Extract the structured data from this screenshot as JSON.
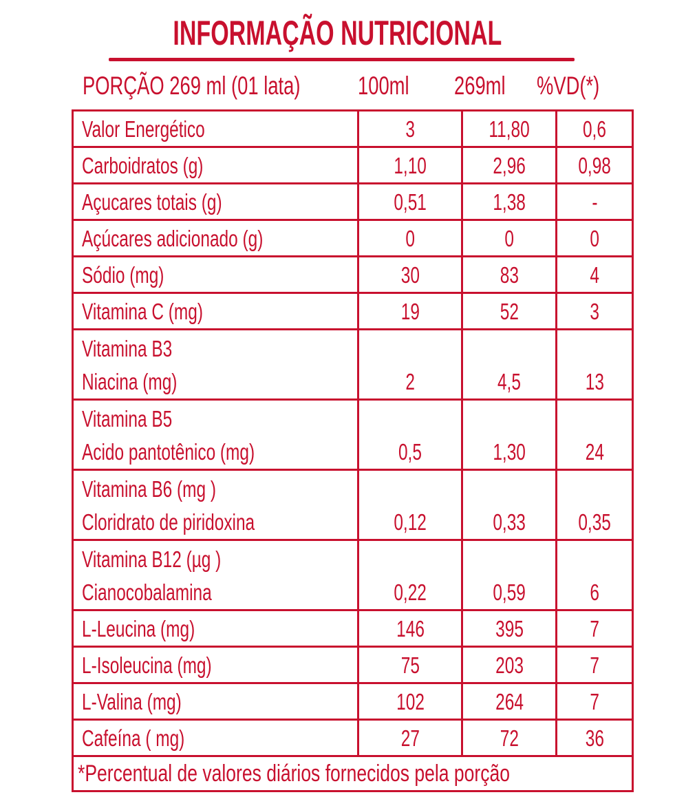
{
  "title": "INFORMAÇÃO NUTRICIONAL",
  "header": {
    "portion": "PORÇÃO 269 ml (01 lata)",
    "col_100ml": "100ml",
    "col_269ml": "269ml",
    "col_vd": "%VD(*)"
  },
  "rows": [
    {
      "label": [
        "Valor Energético"
      ],
      "v100": "3",
      "v269": "11,80",
      "vd": "0,6"
    },
    {
      "label": [
        "Carboidratos (g)"
      ],
      "v100": "1,10",
      "v269": "2,96",
      "vd": "0,98"
    },
    {
      "label": [
        "Açucares totais (g)"
      ],
      "v100": "0,51",
      "v269": "1,38",
      "vd": "-"
    },
    {
      "label": [
        "Açúcares adicionado (g)"
      ],
      "v100": "0",
      "v269": "0",
      "vd": "0"
    },
    {
      "label": [
        "Sódio (mg)"
      ],
      "v100": "30",
      "v269": "83",
      "vd": "4"
    },
    {
      "label": [
        "Vitamina C (mg)"
      ],
      "v100": "19",
      "v269": "52",
      "vd": "3"
    },
    {
      "label": [
        "Vitamina B3",
        "Niacina (mg)"
      ],
      "v100": "2",
      "v269": "4,5",
      "vd": "13"
    },
    {
      "label": [
        "Vitamina B5",
        "Acido pantotênico (mg)"
      ],
      "v100": "0,5",
      "v269": "1,30",
      "vd": "24"
    },
    {
      "label": [
        "Vitamina B6 (mg )",
        "Cloridrato de piridoxina"
      ],
      "v100": "0,12",
      "v269": "0,33",
      "vd": "0,35"
    },
    {
      "label": [
        "Vitamina B12 (µg )",
        "Cianocobalamina"
      ],
      "v100": "0,22",
      "v269": "0,59",
      "vd": "6"
    },
    {
      "label": [
        "L-Leucina (mg)"
      ],
      "v100": "146",
      "v269": "395",
      "vd": "7"
    },
    {
      "label": [
        "L-Isoleucina (mg)"
      ],
      "v100": "75",
      "v269": "203",
      "vd": "7"
    },
    {
      "label": [
        "L-Valina (mg)"
      ],
      "v100": "102",
      "v269": "264",
      "vd": "7"
    },
    {
      "label": [
        "Cafeína ( mg)"
      ],
      "v100": "27",
      "v269": "72",
      "vd": "36"
    }
  ],
  "footnote": "*Percentual de valores diários fornecidos pela porção",
  "colors": {
    "brand_red": "#c8102e",
    "background": "#ffffff"
  }
}
